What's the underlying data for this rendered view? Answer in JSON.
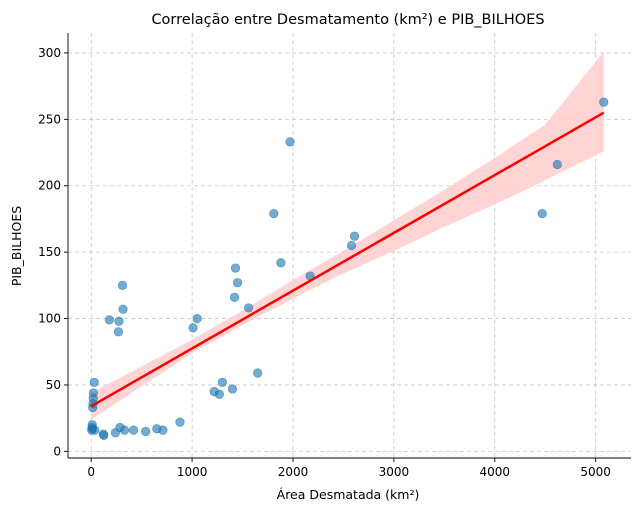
{
  "chart_data": {
    "type": "scatter",
    "title": "Correlação entre Desmatamento (km²) e PIB_BILHOES",
    "xlabel": "Área Desmatada (km²)",
    "ylabel": "PIB_BILHOES",
    "xlim": [
      -230,
      5350
    ],
    "ylim": [
      -5,
      315
    ],
    "xticks": [
      0,
      1000,
      2000,
      3000,
      4000,
      5000
    ],
    "yticks": [
      0,
      50,
      100,
      150,
      200,
      250,
      300
    ],
    "grid": true,
    "colors": {
      "points": "#1f77b4",
      "regression_line": "#ff0000",
      "confidence_band": "#ffcccc"
    },
    "points": [
      {
        "x": 5,
        "y": 16
      },
      {
        "x": 8,
        "y": 18
      },
      {
        "x": 10,
        "y": 20
      },
      {
        "x": 12,
        "y": 17
      },
      {
        "x": 15,
        "y": 33
      },
      {
        "x": 18,
        "y": 36
      },
      {
        "x": 20,
        "y": 40
      },
      {
        "x": 22,
        "y": 44
      },
      {
        "x": 30,
        "y": 52
      },
      {
        "x": 35,
        "y": 16
      },
      {
        "x": 120,
        "y": 13
      },
      {
        "x": 125,
        "y": 12
      },
      {
        "x": 180,
        "y": 99
      },
      {
        "x": 240,
        "y": 14
      },
      {
        "x": 270,
        "y": 90
      },
      {
        "x": 275,
        "y": 98
      },
      {
        "x": 285,
        "y": 18
      },
      {
        "x": 310,
        "y": 125
      },
      {
        "x": 315,
        "y": 107
      },
      {
        "x": 330,
        "y": 16
      },
      {
        "x": 420,
        "y": 16
      },
      {
        "x": 540,
        "y": 15
      },
      {
        "x": 650,
        "y": 17
      },
      {
        "x": 710,
        "y": 16
      },
      {
        "x": 880,
        "y": 22
      },
      {
        "x": 1010,
        "y": 93
      },
      {
        "x": 1050,
        "y": 100
      },
      {
        "x": 1220,
        "y": 45
      },
      {
        "x": 1270,
        "y": 43
      },
      {
        "x": 1300,
        "y": 52
      },
      {
        "x": 1400,
        "y": 47
      },
      {
        "x": 1420,
        "y": 116
      },
      {
        "x": 1430,
        "y": 138
      },
      {
        "x": 1450,
        "y": 127
      },
      {
        "x": 1560,
        "y": 108
      },
      {
        "x": 1650,
        "y": 59
      },
      {
        "x": 1810,
        "y": 179
      },
      {
        "x": 1880,
        "y": 142
      },
      {
        "x": 1970,
        "y": 233
      },
      {
        "x": 2170,
        "y": 132
      },
      {
        "x": 2580,
        "y": 155
      },
      {
        "x": 2610,
        "y": 162
      },
      {
        "x": 4470,
        "y": 179
      },
      {
        "x": 4620,
        "y": 216
      },
      {
        "x": 5080,
        "y": 263
      }
    ],
    "regression": {
      "x": [
        0,
        5080
      ],
      "y": [
        34,
        255
      ]
    },
    "confidence_band": {
      "x": [
        0,
        500,
        1000,
        1500,
        2000,
        2500,
        3000,
        3500,
        4000,
        4500,
        5080
      ],
      "lower": [
        24,
        49,
        74,
        95,
        115,
        134,
        151,
        169,
        186,
        204,
        226
      ],
      "upper": [
        44,
        64,
        84,
        106,
        129,
        151,
        174,
        197,
        221,
        246,
        301
      ]
    }
  }
}
